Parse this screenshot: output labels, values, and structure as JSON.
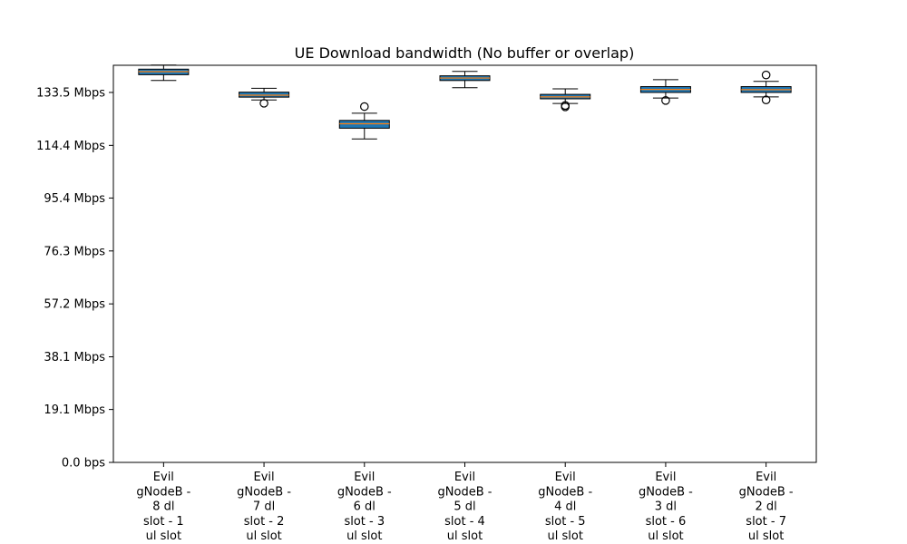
{
  "chart_data": {
    "type": "box",
    "title": "UE Download bandwidth (No buffer or overlap)",
    "xlabel": "",
    "ylabel": "",
    "ylim_mbps": [
      0,
      143.3
    ],
    "y_ticks": [
      {
        "value": 0,
        "label": "0.0 bps"
      },
      {
        "value": 19.1,
        "label": "19.1 Mbps"
      },
      {
        "value": 38.1,
        "label": "38.1 Mbps"
      },
      {
        "value": 57.2,
        "label": "57.2 Mbps"
      },
      {
        "value": 76.3,
        "label": "76.3 Mbps"
      },
      {
        "value": 95.4,
        "label": "95.4 Mbps"
      },
      {
        "value": 114.4,
        "label": "114.4 Mbps"
      },
      {
        "value": 133.5,
        "label": "133.5 Mbps"
      }
    ],
    "categories": [
      [
        "Evil",
        "gNodeB -",
        "8 dl",
        "slot - 1",
        "ul slot"
      ],
      [
        "Evil",
        "gNodeB -",
        "7 dl",
        "slot - 2",
        "ul slot"
      ],
      [
        "Evil",
        "gNodeB -",
        "6 dl",
        "slot - 3",
        "ul slot"
      ],
      [
        "Evil",
        "gNodeB -",
        "5 dl",
        "slot - 4",
        "ul slot"
      ],
      [
        "Evil",
        "gNodeB -",
        "4 dl",
        "slot - 5",
        "ul slot"
      ],
      [
        "Evil",
        "gNodeB -",
        "3 dl",
        "slot - 6",
        "ul slot"
      ],
      [
        "Evil",
        "gNodeB -",
        "2 dl",
        "slot - 7",
        "ul slot"
      ]
    ],
    "boxes": [
      {
        "whisker_low": 137.8,
        "q1": 139.9,
        "median": 141.0,
        "q3": 141.9,
        "whisker_high": 143.4,
        "outliers": []
      },
      {
        "whisker_low": 130.8,
        "q1": 131.8,
        "median": 132.5,
        "q3": 133.6,
        "whisker_high": 135.0,
        "outliers": [
          129.6
        ]
      },
      {
        "whisker_low": 116.7,
        "q1": 120.6,
        "median": 122.2,
        "q3": 123.4,
        "whisker_high": 126.0,
        "outliers": [
          128.4
        ]
      },
      {
        "whisker_low": 135.2,
        "q1": 137.8,
        "median": 138.7,
        "q3": 139.5,
        "whisker_high": 141.1,
        "outliers": []
      },
      {
        "whisker_low": 129.5,
        "q1": 131.2,
        "median": 131.9,
        "q3": 132.8,
        "whisker_high": 134.8,
        "outliers": [
          128.3,
          128.8
        ]
      },
      {
        "whisker_low": 131.5,
        "q1": 133.5,
        "median": 134.6,
        "q3": 135.6,
        "whisker_high": 138.1,
        "outliers": [
          130.6
        ]
      },
      {
        "whisker_low": 131.9,
        "q1": 133.5,
        "median": 134.5,
        "q3": 135.6,
        "whisker_high": 137.5,
        "outliers": [
          130.8,
          139.8
        ]
      }
    ],
    "colors": {
      "box_fill": "#1f77b4",
      "median": "#ff7f0e",
      "stroke": "#000000"
    },
    "grid": false,
    "legend": "none"
  }
}
